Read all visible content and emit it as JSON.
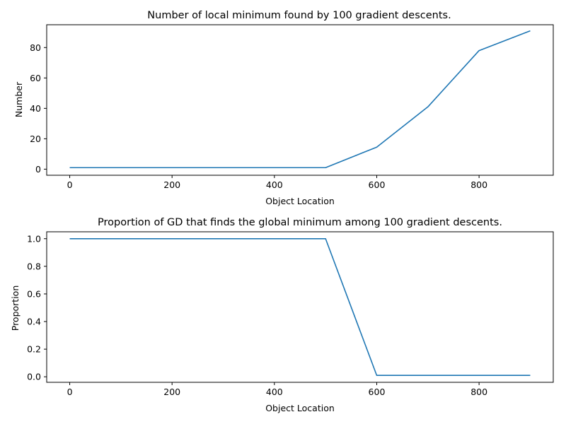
{
  "chart_data": [
    {
      "type": "line",
      "title": "Number of local minimum found by 100 gradient descents.",
      "xlabel": "Object Location",
      "ylabel": "Number",
      "xlim": [
        -45,
        945
      ],
      "ylim": [
        -4,
        95
      ],
      "xticks": [
        0,
        200,
        400,
        600,
        800
      ],
      "yticks": [
        0,
        20,
        40,
        60,
        80
      ],
      "grid": false,
      "series": [
        {
          "color": "#1f77b4",
          "x": [
            0,
            100,
            200,
            300,
            400,
            500,
            600,
            700,
            800,
            900
          ],
          "y": [
            1,
            1,
            1,
            1,
            1,
            1,
            14.5,
            41,
            78,
            91
          ]
        }
      ]
    },
    {
      "type": "line",
      "title": "Proportion of GD that finds the global minimum among 100 gradient descents.",
      "xlabel": "Object Location",
      "ylabel": "Proportion",
      "xlim": [
        -45,
        945
      ],
      "ylim": [
        -0.04,
        1.05
      ],
      "xticks": [
        0,
        200,
        400,
        600,
        800
      ],
      "yticks": [
        0.0,
        0.2,
        0.4,
        0.6,
        0.8,
        1.0
      ],
      "grid": false,
      "series": [
        {
          "color": "#1f77b4",
          "x": [
            0,
            100,
            200,
            300,
            400,
            500,
            600,
            700,
            800,
            900
          ],
          "y": [
            1.0,
            1.0,
            1.0,
            1.0,
            1.0,
            1.0,
            0.01,
            0.01,
            0.01,
            0.01
          ]
        }
      ]
    }
  ]
}
